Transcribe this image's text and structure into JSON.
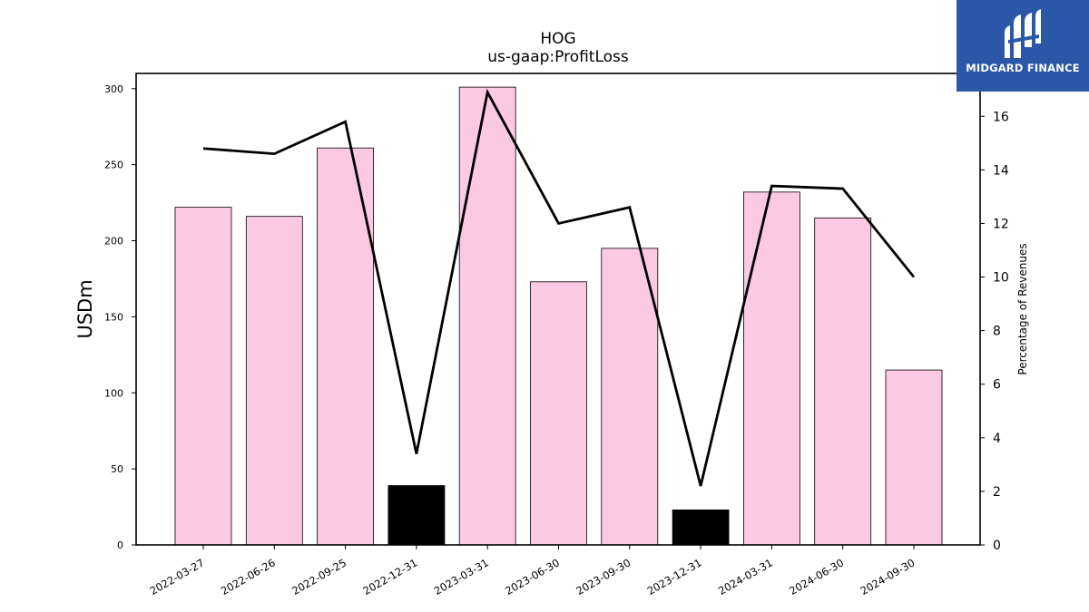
{
  "chart_data": {
    "type": "bar",
    "title": "HOG",
    "subtitle": "us-gaap:ProfitLoss",
    "ylabel": "USDm",
    "y2label": "Percentage of Revenues",
    "categories": [
      "2022-03-27",
      "2022-06-26",
      "2022-09-25",
      "2022-12-31",
      "2023-03-31",
      "2023-06-30",
      "2023-09-30",
      "2023-12-31",
      "2024-03-31",
      "2024-06-30",
      "2024-09-30"
    ],
    "series": [
      {
        "name": "",
        "type": "bar",
        "values": [
          222,
          216,
          261,
          39,
          301,
          173,
          195,
          23,
          232,
          215,
          115
        ],
        "colors": [
          "#fcc9e3",
          "#fcc9e3",
          "#fcc9e3",
          "#000000",
          "#fcc9e3",
          "#fcc9e3",
          "#fcc9e3",
          "#000000",
          "#fcc9e3",
          "#fcc9e3",
          "#fcc9e3"
        ]
      },
      {
        "name": "",
        "type": "line",
        "axis": "right",
        "values": [
          14.8,
          14.6,
          15.8,
          3.4,
          16.9,
          12.0,
          12.6,
          2.2,
          13.4,
          13.3,
          10.0
        ],
        "color": "#000000"
      }
    ],
    "ylim": [
      0,
      310
    ],
    "yticks": [
      0,
      50,
      100,
      150,
      200,
      250,
      300
    ],
    "y2lim": [
      0,
      17.6
    ],
    "y2ticks": [
      0,
      2,
      4,
      6,
      8,
      10,
      12,
      14,
      16
    ],
    "grid": false,
    "legend": "none"
  },
  "logo": {
    "text": "MIDGARD FINANCE",
    "color": "#2a57a8"
  }
}
